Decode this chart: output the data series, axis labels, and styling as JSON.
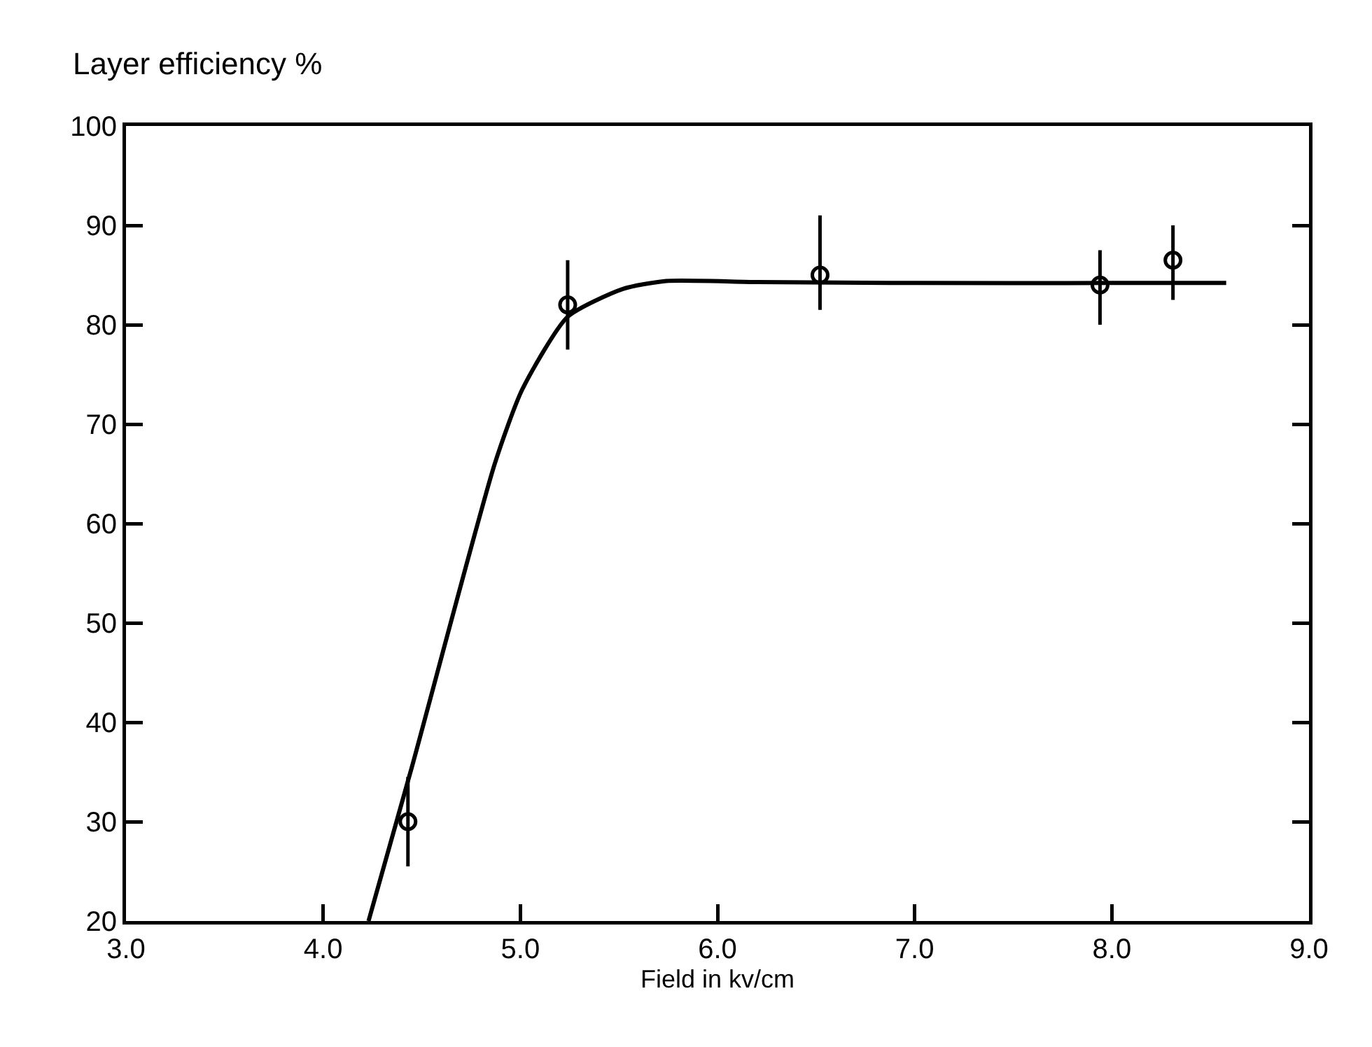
{
  "chart_data": {
    "type": "scatter",
    "ylabel": "Layer efficiency %",
    "xlabel": "Field in kv/cm",
    "xlim": [
      3.0,
      9.0
    ],
    "xticks": [
      {
        "value": 3,
        "label": "3.0"
      },
      {
        "value": 4,
        "label": "4.0"
      },
      {
        "value": 5,
        "label": "5.0"
      },
      {
        "value": 6,
        "label": "6.0"
      },
      {
        "value": 7,
        "label": "7.0"
      },
      {
        "value": 8,
        "label": "8.0"
      },
      {
        "value": 9,
        "label": "9.0"
      }
    ],
    "ylim": [
      20,
      100
    ],
    "yticks": [
      20,
      30,
      40,
      50,
      60,
      70,
      80,
      90,
      100
    ],
    "grid": false,
    "series": [
      {
        "color": "#000000",
        "marker": "circle",
        "x": [
          4.43,
          5.24,
          6.52,
          7.94,
          8.31
        ],
        "values": [
          30,
          82,
          85,
          84,
          86.5
        ],
        "errors": [
          [
            25.5,
            34.5
          ],
          [
            77.5,
            86.5
          ],
          [
            81.5,
            91
          ],
          [
            80,
            87.5
          ],
          [
            82.5,
            90
          ]
        ]
      },
      {
        "type": "line",
        "color": "#000000",
        "marker": "none",
        "line_style": "solid",
        "x": [
          4.23,
          4.45,
          4.87,
          5.01,
          5.24,
          5.52,
          5.74,
          6.2,
          7.0,
          8.0,
          8.58
        ],
        "values": [
          20,
          35.5,
          66,
          73.5,
          80.8,
          83.6,
          84.4,
          84.3,
          84.2,
          84.2,
          84.2
        ]
      }
    ]
  }
}
